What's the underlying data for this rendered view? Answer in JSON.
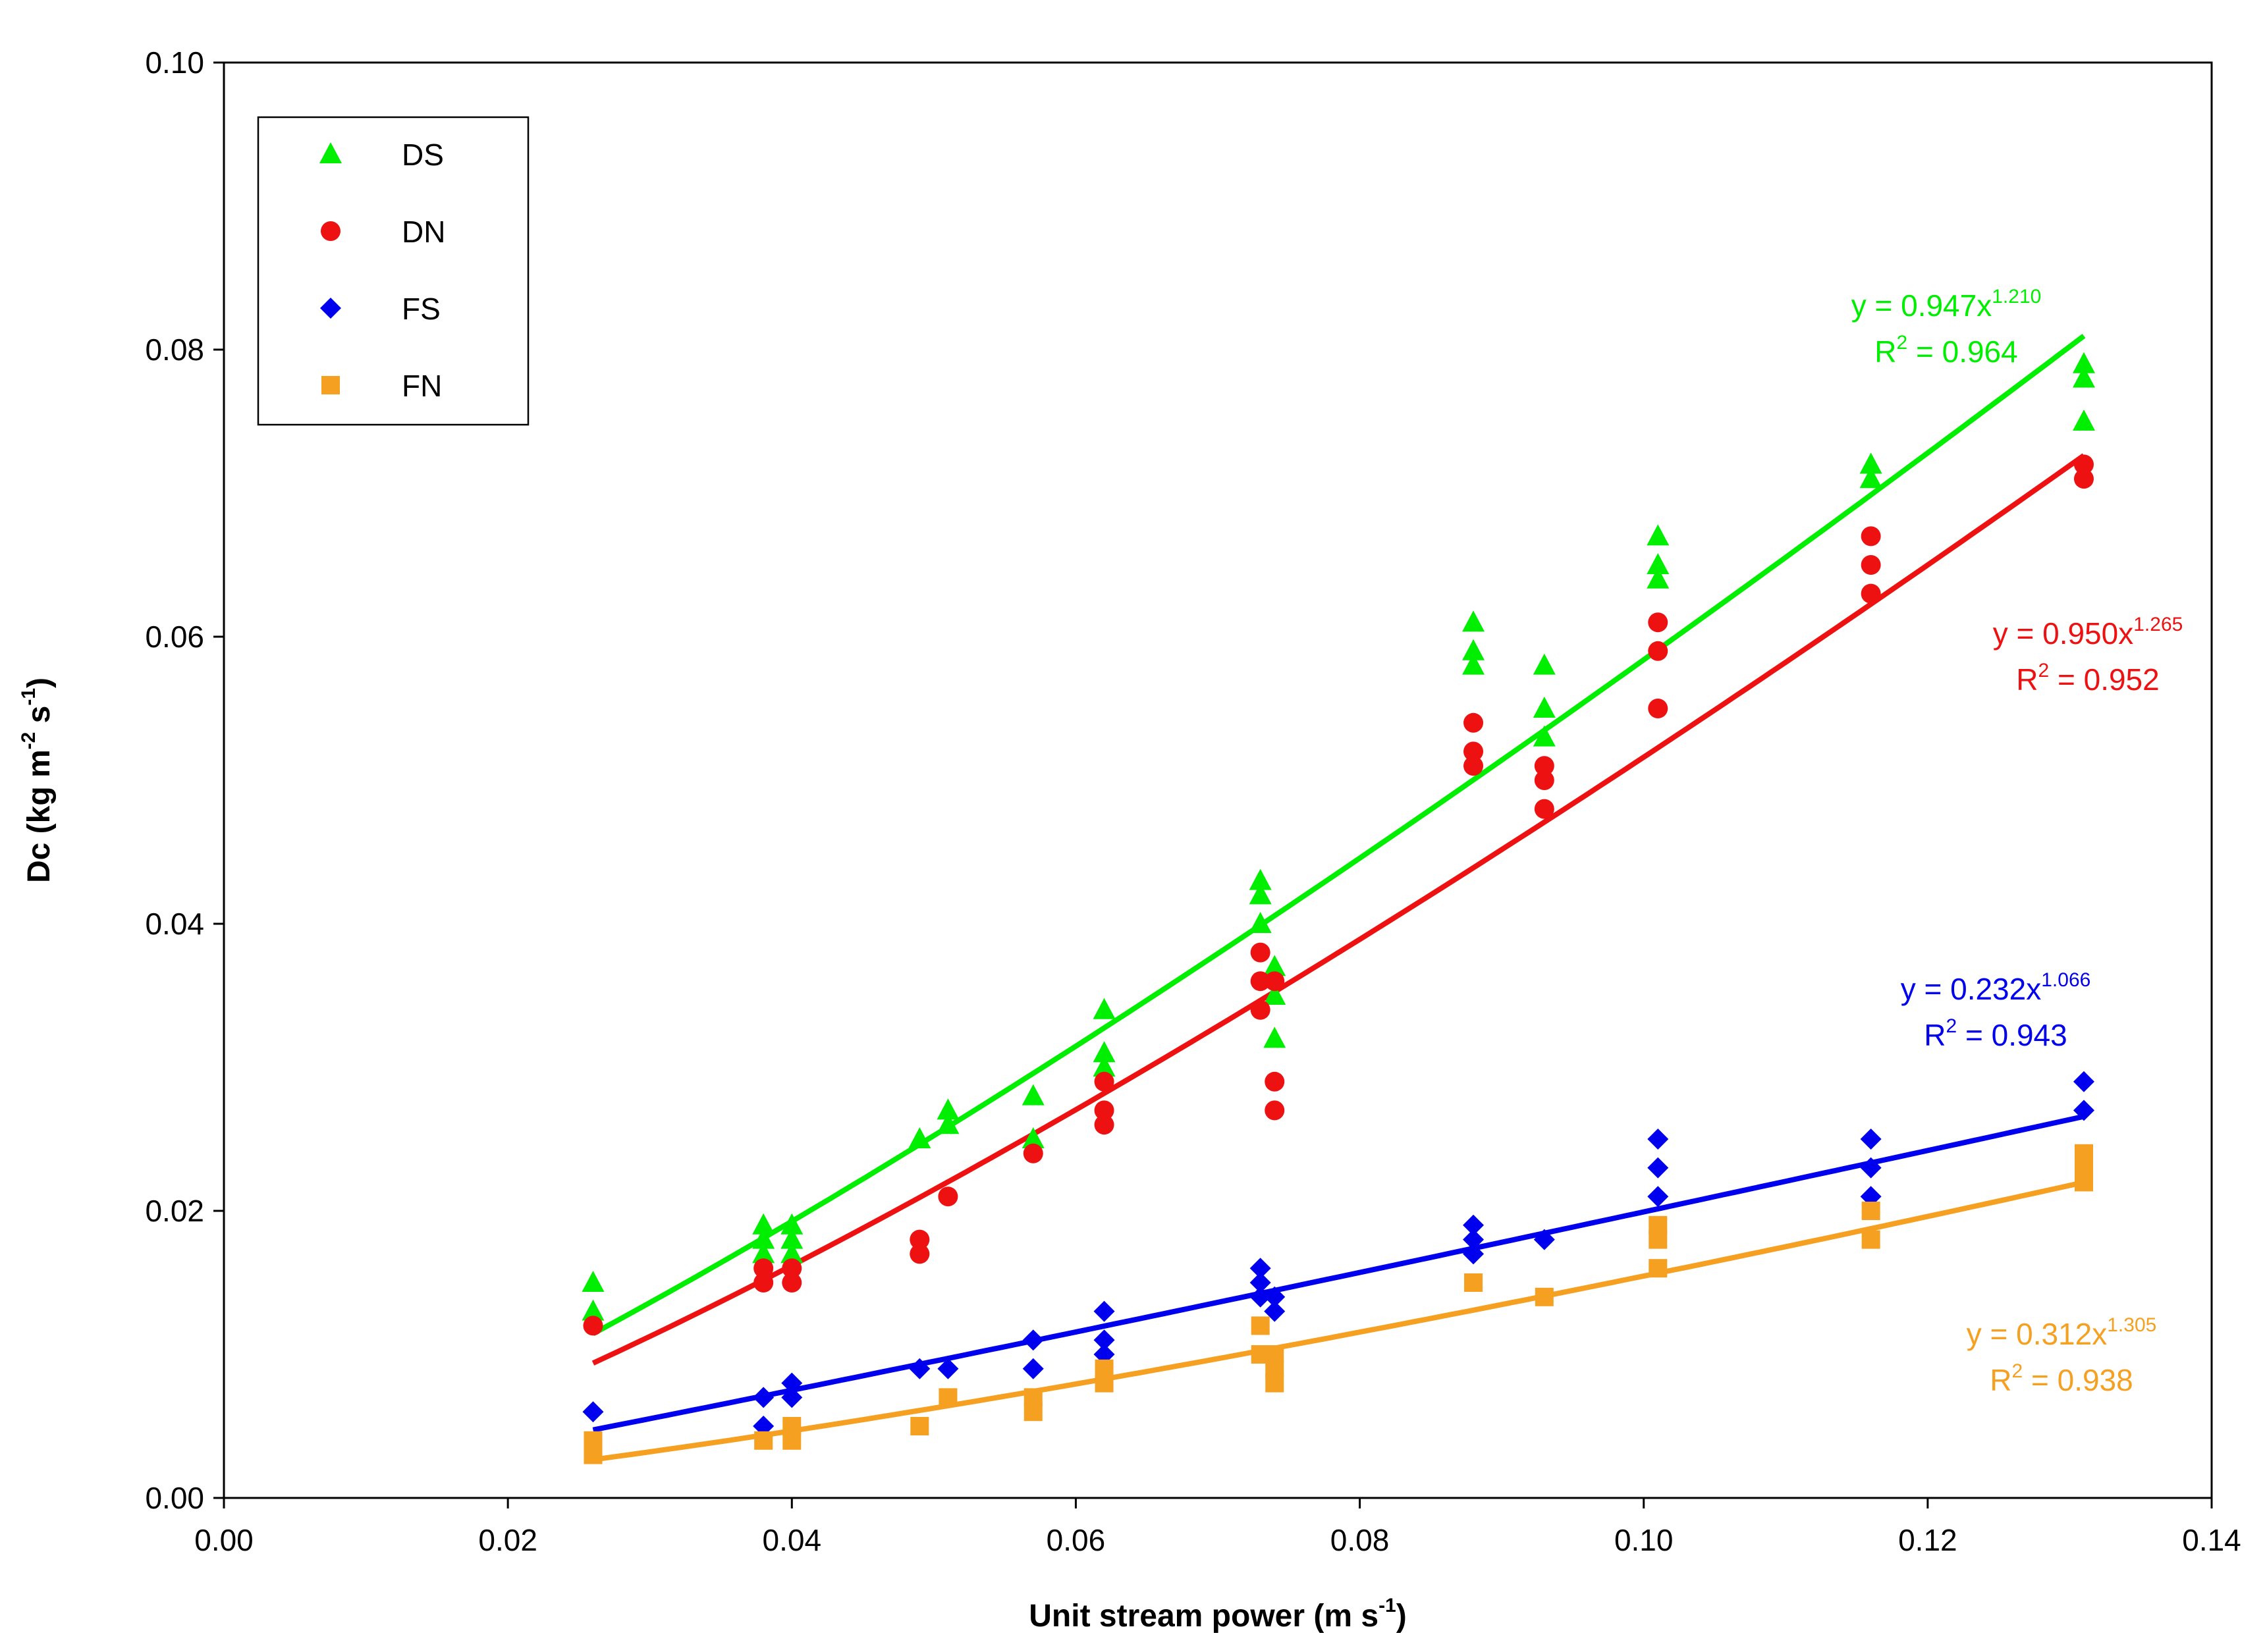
{
  "chart_data": {
    "type": "scatter",
    "title": "",
    "xlabel": {
      "text": "Unit stream power (m s",
      "sup": "-1",
      "close": ")"
    },
    "ylabel": {
      "text": "Dc (kg m",
      "sup1": "-2",
      "mid": " s",
      "sup2": "-1",
      "close": ")"
    },
    "xlim": [
      0,
      0.14
    ],
    "ylim": [
      0,
      0.1
    ],
    "xticks": [
      "0.00",
      "0.02",
      "0.04",
      "0.06",
      "0.08",
      "0.10",
      "0.12",
      "0.14"
    ],
    "yticks": [
      "0.00",
      "0.02",
      "0.04",
      "0.06",
      "0.08",
      "0.10"
    ],
    "legend_position": "top-left",
    "series": [
      {
        "name": "DS",
        "marker": "triangle",
        "color": "#00ee00",
        "fit": {
          "a": 0.947,
          "b": 1.21,
          "eq": "y = 0.947x",
          "exp": "1.210",
          "r2_label": "R",
          "r2_sup": "2",
          "r2_val": " = 0.964"
        },
        "points": [
          [
            0.026,
            0.015
          ],
          [
            0.026,
            0.013
          ],
          [
            0.038,
            0.019
          ],
          [
            0.038,
            0.018
          ],
          [
            0.038,
            0.017
          ],
          [
            0.04,
            0.019
          ],
          [
            0.04,
            0.018
          ],
          [
            0.04,
            0.017
          ],
          [
            0.049,
            0.025
          ],
          [
            0.051,
            0.027
          ],
          [
            0.051,
            0.026
          ],
          [
            0.057,
            0.028
          ],
          [
            0.057,
            0.025
          ],
          [
            0.062,
            0.034
          ],
          [
            0.062,
            0.031
          ],
          [
            0.062,
            0.03
          ],
          [
            0.073,
            0.043
          ],
          [
            0.073,
            0.042
          ],
          [
            0.073,
            0.04
          ],
          [
            0.074,
            0.037
          ],
          [
            0.074,
            0.035
          ],
          [
            0.074,
            0.032
          ],
          [
            0.088,
            0.061
          ],
          [
            0.088,
            0.059
          ],
          [
            0.088,
            0.058
          ],
          [
            0.093,
            0.058
          ],
          [
            0.093,
            0.055
          ],
          [
            0.093,
            0.053
          ],
          [
            0.101,
            0.067
          ],
          [
            0.101,
            0.065
          ],
          [
            0.101,
            0.064
          ],
          [
            0.116,
            0.072
          ],
          [
            0.116,
            0.071
          ],
          [
            0.131,
            0.079
          ],
          [
            0.131,
            0.078
          ],
          [
            0.131,
            0.075
          ]
        ]
      },
      {
        "name": "DN",
        "marker": "circle",
        "color": "#ee1111",
        "fit": {
          "a": 0.95,
          "b": 1.265,
          "eq": "y = 0.950x",
          "exp": "1.265",
          "r2_label": "R",
          "r2_sup": "2",
          "r2_val": " = 0.952"
        },
        "points": [
          [
            0.026,
            0.012
          ],
          [
            0.038,
            0.016
          ],
          [
            0.038,
            0.015
          ],
          [
            0.04,
            0.016
          ],
          [
            0.04,
            0.015
          ],
          [
            0.049,
            0.018
          ],
          [
            0.049,
            0.017
          ],
          [
            0.051,
            0.021
          ],
          [
            0.057,
            0.024
          ],
          [
            0.062,
            0.029
          ],
          [
            0.062,
            0.027
          ],
          [
            0.062,
            0.026
          ],
          [
            0.073,
            0.038
          ],
          [
            0.073,
            0.036
          ],
          [
            0.073,
            0.034
          ],
          [
            0.074,
            0.036
          ],
          [
            0.074,
            0.029
          ],
          [
            0.074,
            0.027
          ],
          [
            0.088,
            0.054
          ],
          [
            0.088,
            0.052
          ],
          [
            0.088,
            0.051
          ],
          [
            0.093,
            0.051
          ],
          [
            0.093,
            0.05
          ],
          [
            0.093,
            0.048
          ],
          [
            0.101,
            0.061
          ],
          [
            0.101,
            0.059
          ],
          [
            0.101,
            0.055
          ],
          [
            0.116,
            0.067
          ],
          [
            0.116,
            0.065
          ],
          [
            0.116,
            0.063
          ],
          [
            0.131,
            0.072
          ],
          [
            0.131,
            0.071
          ]
        ]
      },
      {
        "name": "FS",
        "marker": "diamond",
        "color": "#0000ee",
        "fit": {
          "a": 0.232,
          "b": 1.066,
          "eq": "y = 0.232x",
          "exp": "1.066",
          "r2_label": "R",
          "r2_sup": "2",
          "r2_val": " = 0.943"
        },
        "points": [
          [
            0.026,
            0.006
          ],
          [
            0.038,
            0.007
          ],
          [
            0.038,
            0.005
          ],
          [
            0.04,
            0.008
          ],
          [
            0.04,
            0.007
          ],
          [
            0.049,
            0.009
          ],
          [
            0.051,
            0.009
          ],
          [
            0.057,
            0.011
          ],
          [
            0.057,
            0.009
          ],
          [
            0.062,
            0.013
          ],
          [
            0.062,
            0.011
          ],
          [
            0.062,
            0.01
          ],
          [
            0.073,
            0.016
          ],
          [
            0.073,
            0.015
          ],
          [
            0.073,
            0.014
          ],
          [
            0.074,
            0.014
          ],
          [
            0.074,
            0.013
          ],
          [
            0.088,
            0.019
          ],
          [
            0.088,
            0.018
          ],
          [
            0.088,
            0.017
          ],
          [
            0.093,
            0.018
          ],
          [
            0.101,
            0.025
          ],
          [
            0.101,
            0.023
          ],
          [
            0.101,
            0.021
          ],
          [
            0.116,
            0.025
          ],
          [
            0.116,
            0.023
          ],
          [
            0.116,
            0.021
          ],
          [
            0.131,
            0.029
          ],
          [
            0.131,
            0.027
          ]
        ]
      },
      {
        "name": "FN",
        "marker": "square",
        "color": "#f5a020",
        "fit": {
          "a": 0.312,
          "b": 1.305,
          "eq": "y = 0.312x",
          "exp": "1.305",
          "r2_label": "R",
          "r2_sup": "2",
          "r2_val": " = 0.938"
        },
        "points": [
          [
            0.026,
            0.004
          ],
          [
            0.026,
            0.003
          ],
          [
            0.038,
            0.004
          ],
          [
            0.04,
            0.005
          ],
          [
            0.04,
            0.004
          ],
          [
            0.049,
            0.005
          ],
          [
            0.051,
            0.007
          ],
          [
            0.057,
            0.007
          ],
          [
            0.057,
            0.006
          ],
          [
            0.062,
            0.009
          ],
          [
            0.062,
            0.008
          ],
          [
            0.073,
            0.012
          ],
          [
            0.073,
            0.01
          ],
          [
            0.074,
            0.01
          ],
          [
            0.074,
            0.009
          ],
          [
            0.074,
            0.008
          ],
          [
            0.088,
            0.015
          ],
          [
            0.093,
            0.014
          ],
          [
            0.101,
            0.019
          ],
          [
            0.101,
            0.018
          ],
          [
            0.101,
            0.016
          ],
          [
            0.116,
            0.02
          ],
          [
            0.116,
            0.018
          ],
          [
            0.131,
            0.024
          ],
          [
            0.131,
            0.023
          ],
          [
            0.131,
            0.022
          ]
        ]
      }
    ],
    "fit_range": [
      0.026,
      0.131
    ]
  }
}
